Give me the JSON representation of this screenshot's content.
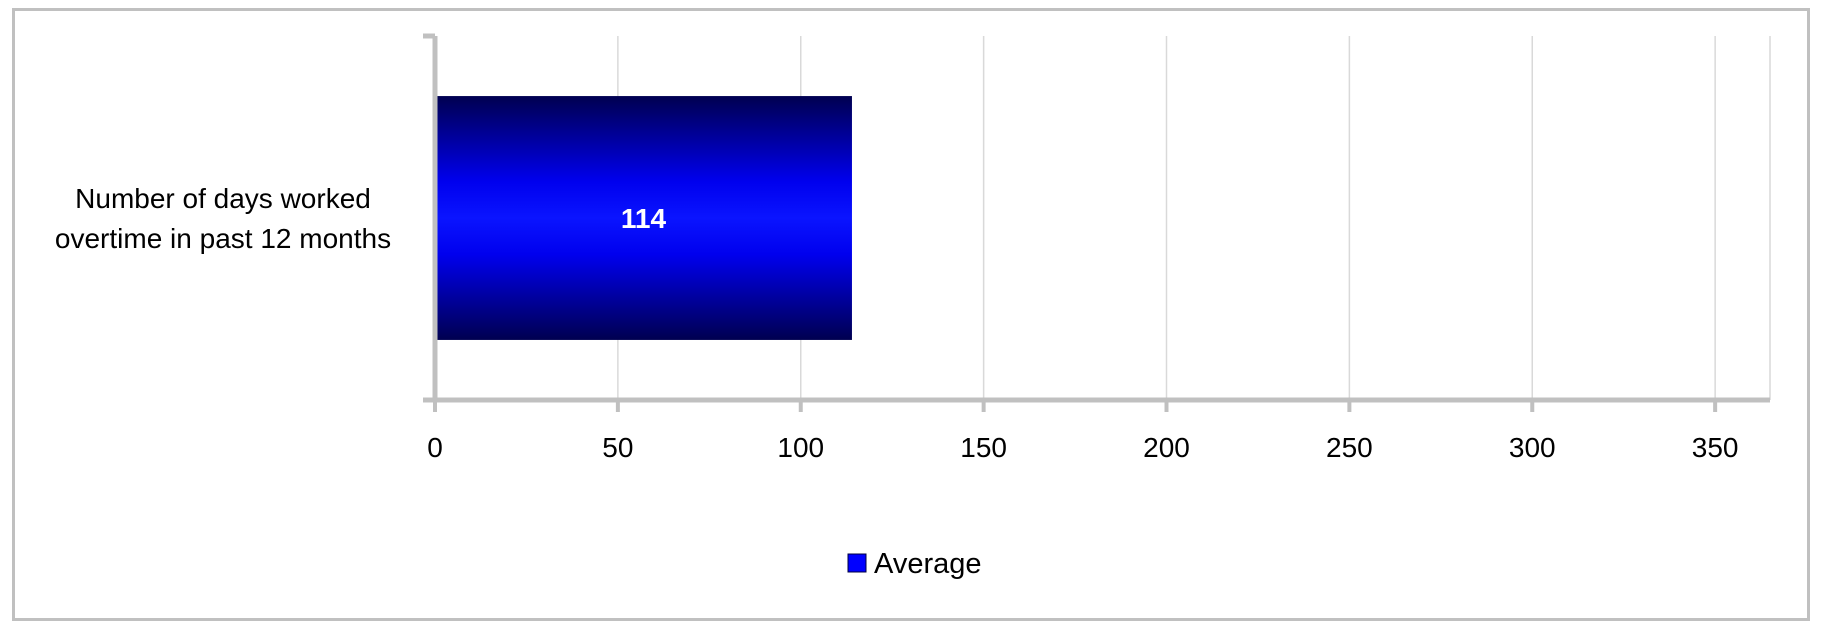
{
  "chart_data": {
    "type": "bar",
    "orientation": "horizontal",
    "categories": [
      "Number of days worked overtime in past 12 months"
    ],
    "category_lines": [
      [
        "Number of days worked",
        "overtime in past 12 months"
      ]
    ],
    "series": [
      {
        "name": "Average",
        "values": [
          114
        ],
        "color": "#0000ff"
      }
    ],
    "xlim": [
      0,
      365
    ],
    "xticks": [
      0,
      50,
      100,
      150,
      200,
      250,
      300,
      350
    ],
    "grid": true,
    "legend": "bottom-center",
    "title": "",
    "xlabel": "",
    "ylabel": ""
  }
}
